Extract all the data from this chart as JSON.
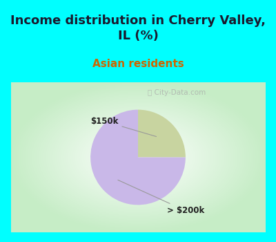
{
  "title": "Income distribution in Cherry Valley,\nIL (%)",
  "subtitle": "Asian residents",
  "title_color": "#1a1a2e",
  "subtitle_color": "#cc6600",
  "bg_color": "#00ffff",
  "chart_bg_gradient_center": "#ffffff",
  "chart_bg_gradient_edge": "#c8eec8",
  "slices": [
    {
      "label": "$150k",
      "value": 25,
      "color": "#c8d4a0"
    },
    {
      "label": "> $200k",
      "value": 75,
      "color": "#c9b8e8"
    }
  ],
  "watermark": "ⓘ City-Data.com",
  "figsize": [
    4.0,
    3.5
  ],
  "dpi": 100,
  "title_fontsize": 13,
  "subtitle_fontsize": 11
}
